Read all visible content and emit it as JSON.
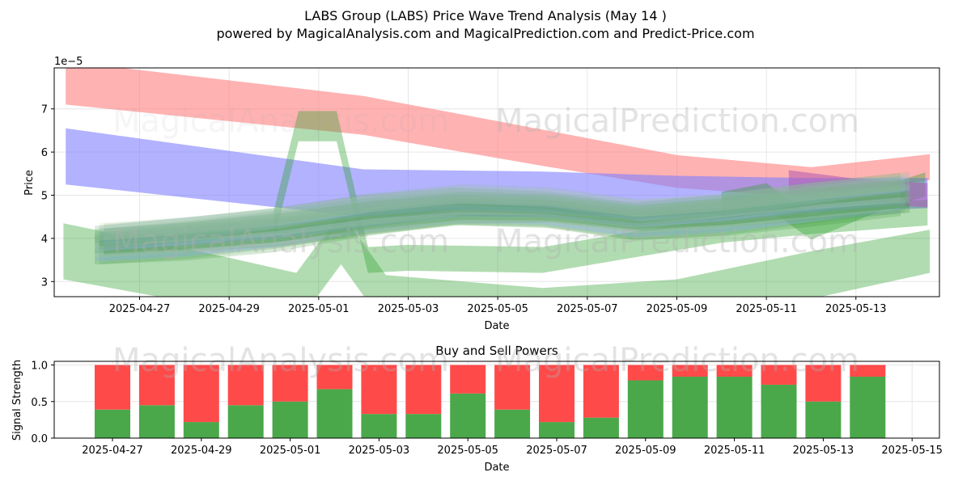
{
  "title": "LABS Group (LABS) Price Wave Trend Analysis (May 14 )",
  "subtitle": "powered by MagicalAnalysis.com and MagicalPrediction.com and Predict-Price.com",
  "watermarks": [
    "MagicalAnalysis.com",
    "MagicalPrediction.com"
  ],
  "chart_data": [
    {
      "type": "area",
      "title": "",
      "xlabel": "Date",
      "ylabel": "Price",
      "y_scale_label": "1e−5",
      "x_range": [
        "2025-04-25.3",
        "2025-05-14.8"
      ],
      "ylim": [
        2.65,
        7.95
      ],
      "x_ticks": [
        "2025-04-27",
        "2025-04-29",
        "2025-05-01",
        "2025-05-03",
        "2025-05-05",
        "2025-05-07",
        "2025-05-09",
        "2025-05-11",
        "2025-05-13"
      ],
      "y_ticks": [
        3,
        4,
        5,
        6,
        7
      ],
      "grid": true,
      "bands": [
        {
          "name": "upper resistance band (red)",
          "color": "#ff7f7f",
          "opacity": 0.6,
          "points": [
            [
              -1.65,
              7.6
            ],
            [
              5.0,
              6.85
            ],
            [
              9.0,
              6.1
            ],
            [
              12.0,
              5.55
            ],
            [
              15.0,
              5.3
            ],
            [
              17.65,
              5.65
            ]
          ],
          "half_width": [
            0.5,
            0.45,
            0.42,
            0.38,
            0.35,
            0.3
          ]
        },
        {
          "name": "middle trend band (blue)",
          "color": "#7f7fff",
          "opacity": 0.6,
          "points": [
            [
              -1.65,
              5.9
            ],
            [
              5.0,
              5.05
            ],
            [
              9.0,
              5.05
            ],
            [
              12.0,
              5.0
            ],
            [
              15.0,
              5.0
            ],
            [
              17.6,
              5.05
            ]
          ],
          "half_width": [
            0.65,
            0.55,
            0.5,
            0.45,
            0.4,
            0.35
          ]
        },
        {
          "name": "lower support band (green)",
          "color": "#2ca02c",
          "opacity": 0.37,
          "points": [
            [
              -1.7,
              3.7
            ],
            [
              2.0,
              2.95
            ],
            [
              3.5,
              2.6
            ],
            [
              4.5,
              4.0
            ],
            [
              5.5,
              2.55
            ],
            [
              9.0,
              2.25
            ],
            [
              12.0,
              2.45
            ],
            [
              15.0,
              3.15
            ],
            [
              17.65,
              3.7
            ]
          ],
          "half_width": [
            0.65,
            0.6,
            0.6,
            0.6,
            0.6,
            0.6,
            0.6,
            0.55,
            0.5
          ]
        },
        {
          "name": "price spike band (green)",
          "color": "#2ca02c",
          "opacity": 0.37,
          "points": [
            [
              3.0,
              4.3
            ],
            [
              3.55,
              6.6
            ],
            [
              4.4,
              6.6
            ],
            [
              5.1,
              3.5
            ],
            [
              6.0,
              3.55
            ],
            [
              9.0,
              3.5
            ],
            [
              13.0,
              4.2
            ],
            [
              15.0,
              4.4
            ],
            [
              17.6,
              4.6
            ]
          ],
          "half_width": [
            0.35,
            0.35,
            0.35,
            0.3,
            0.3,
            0.3,
            0.3,
            0.3,
            0.3
          ]
        },
        {
          "name": "recent channel band (green)",
          "color": "#2ca02c",
          "opacity": 0.37,
          "points": [
            [
              13.0,
              4.8
            ],
            [
              14.0,
              5.0
            ],
            [
              15.0,
              4.25
            ],
            [
              16.5,
              4.9
            ],
            [
              17.55,
              5.25
            ]
          ],
          "half_width": [
            0.28,
            0.28,
            0.28,
            0.28,
            0.28
          ]
        },
        {
          "name": "recent purple band",
          "color": "#b05ab0",
          "opacity": 0.55,
          "points": [
            [
              14.5,
              5.3
            ],
            [
              16.0,
              5.1
            ],
            [
              17.6,
              5.0
            ]
          ],
          "half_width": [
            0.28,
            0.28,
            0.28
          ]
        }
      ],
      "wave_lines": {
        "colors": [
          "#2e8b2e",
          "#4a9a4a",
          "#6fb86f",
          "#7f9fff",
          "#a0b8ff",
          "#5a9a5a",
          "#b8d8a0",
          "#8fbf8f"
        ],
        "opacity": 0.2,
        "points": [
          [
            -1.0,
            3.9
          ],
          [
            1.0,
            4.05
          ],
          [
            3.0,
            4.25
          ],
          [
            5.0,
            4.55
          ],
          [
            7.0,
            4.75
          ],
          [
            9.0,
            4.7
          ],
          [
            11.0,
            4.45
          ],
          [
            13.0,
            4.6
          ],
          [
            15.0,
            4.85
          ],
          [
            17.0,
            5.05
          ]
        ],
        "count": 24,
        "half_width": 0.2
      }
    },
    {
      "type": "bar",
      "title": "Buy and Sell Powers",
      "xlabel": "Date",
      "ylabel": "Signal Strength",
      "ylim": [
        0,
        1.05
      ],
      "y_ticks": [
        "0.0",
        "0.5",
        "1.0"
      ],
      "x_ticks": [
        "2025-04-27",
        "2025-04-29",
        "2025-05-01",
        "2025-05-03",
        "2025-05-05",
        "2025-05-07",
        "2025-05-09",
        "2025-05-11",
        "2025-05-13",
        "2025-05-15"
      ],
      "categories": [
        "2025-04-27",
        "2025-04-28",
        "2025-04-29",
        "2025-04-30",
        "2025-05-01",
        "2025-05-02",
        "2025-05-03",
        "2025-05-04",
        "2025-05-05",
        "2025-05-06",
        "2025-05-07",
        "2025-05-08",
        "2025-05-09",
        "2025-05-10",
        "2025-05-11",
        "2025-05-12",
        "2025-05-13",
        "2025-05-14"
      ],
      "series": [
        {
          "name": "Buy Power",
          "color": "#4aa84a",
          "values": [
            0.39,
            0.45,
            0.22,
            0.45,
            0.5,
            0.67,
            0.33,
            0.33,
            0.61,
            0.39,
            0.22,
            0.28,
            0.79,
            0.84,
            0.84,
            0.73,
            0.5,
            0.84
          ]
        },
        {
          "name": "Sell Power",
          "color": "#ff4a4a",
          "values": [
            0.61,
            0.55,
            0.78,
            0.55,
            0.5,
            0.33,
            0.67,
            0.67,
            0.39,
            0.61,
            0.78,
            0.72,
            0.21,
            0.16,
            0.16,
            0.27,
            0.5,
            0.16
          ]
        }
      ],
      "grid": true
    }
  ]
}
